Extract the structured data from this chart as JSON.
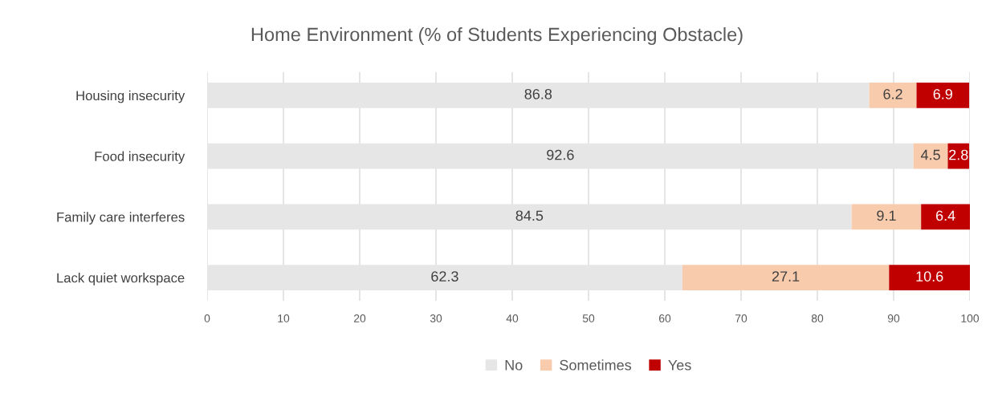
{
  "chart_data": {
    "type": "bar",
    "orientation": "horizontal",
    "stacked": true,
    "title": "Home Environment (% of Students Experiencing Obstacle)",
    "categories": [
      "Housing insecurity",
      "Food insecurity",
      "Family care interferes",
      "Lack quiet workspace"
    ],
    "series": [
      {
        "name": "No",
        "color": "#e7e6e6",
        "values": [
          86.8,
          92.6,
          84.5,
          62.3
        ]
      },
      {
        "name": "Sometimes",
        "color": "#f8cbad",
        "values": [
          6.2,
          4.5,
          9.1,
          27.1
        ]
      },
      {
        "name": "Yes",
        "color": "#c00000",
        "values": [
          6.9,
          2.8,
          6.4,
          10.6
        ]
      }
    ],
    "xlim": [
      0,
      100
    ],
    "xticks": [
      0,
      10,
      20,
      30,
      40,
      50,
      60,
      70,
      80,
      90,
      100
    ],
    "grid": "x",
    "legend": "bottom",
    "data_labels": true
  }
}
